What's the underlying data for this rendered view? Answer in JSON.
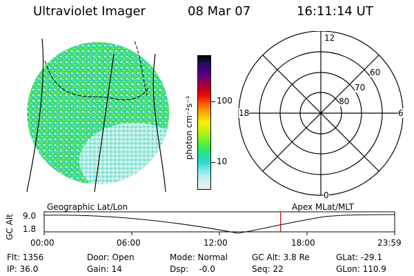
{
  "header": {
    "instrument": "Ultraviolet Imager",
    "date": "08 Mar 07",
    "time": "16:11:14 UT"
  },
  "colorbar": {
    "label": "photon cm⁻²s⁻¹",
    "ticks": [
      {
        "label": "100",
        "value": 100
      },
      {
        "label": "10",
        "value": 10
      }
    ],
    "colors": [
      "#f0f0f0",
      "#d8f0f0",
      "#b0f0f0",
      "#70e8e8",
      "#30d8d0",
      "#20e0a0",
      "#30e860",
      "#60f030",
      "#a0f020",
      "#d0f000",
      "#f8f000",
      "#f8c000",
      "#f89000",
      "#f85000",
      "#e81000",
      "#c00020",
      "#900050",
      "#600080",
      "#400080",
      "#201050",
      "#000000"
    ]
  },
  "polar": {
    "mlt_labels": {
      "top": "12",
      "left": "18",
      "right": "6",
      "bottom": "0"
    },
    "lat_labels": [
      "60",
      "70",
      "80"
    ]
  },
  "timeline": {
    "title_left": "Geographic Lat/Lon",
    "title_right": "Apex  MLat/MLT",
    "ylabel": "GC Alt",
    "yticks": [
      "9.0",
      "1.8"
    ],
    "xticks": [
      "00:00",
      "06:00",
      "12:00",
      "18:00",
      "23:59"
    ],
    "marker_time_hours": 16.19,
    "marker_color": "#c00000"
  },
  "status": {
    "flt": "Flt: 1356",
    "ip": "IP: 36.0",
    "door": "Door: Open",
    "gain": "Gain: 14",
    "mode": "Mode: Normal",
    "dsp": "Dsp:    -0.0",
    "gcalt": "GC Alt: 3.8 Re",
    "seq": "Seq: 22",
    "glat": "GLat: -29.1",
    "glon": "GLon: 110.9"
  }
}
